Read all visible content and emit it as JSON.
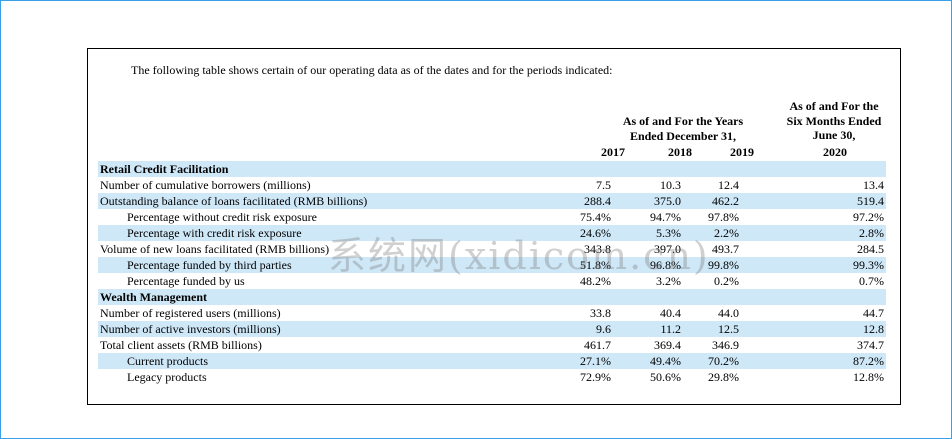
{
  "intro": "The following table shows certain of our operating data as of the dates and for the periods indicated:",
  "headers": {
    "years_line1": "As of and For the Years",
    "years_line2": "Ended December 31,",
    "six_line1": "As of and For the",
    "six_line2": "Six Months Ended",
    "six_line3": "June 30,",
    "y2017": "2017",
    "y2018": "2018",
    "y2019": "2019",
    "y2020": "2020"
  },
  "rows": [
    {
      "label": "Retail Credit Facilitation",
      "section": true,
      "v": [
        "",
        "",
        "",
        ""
      ]
    },
    {
      "label": "Number of cumulative borrowers (millions)",
      "v": [
        "7.5",
        "10.3",
        "12.4",
        "13.4"
      ]
    },
    {
      "label": "Outstanding balance of loans facilitated (RMB billions)",
      "v": [
        "288.4",
        "375.0",
        "462.2",
        "519.4"
      ]
    },
    {
      "label": "Percentage without credit risk exposure",
      "indent": true,
      "v": [
        "75.4%",
        "94.7%",
        "97.8%",
        "97.2%"
      ]
    },
    {
      "label": "Percentage with credit risk exposure",
      "indent": true,
      "v": [
        "24.6%",
        "5.3%",
        "2.2%",
        "2.8%"
      ]
    },
    {
      "label": "Volume of new loans facilitated (RMB billions)",
      "v": [
        "343.8",
        "397.0",
        "493.7",
        "284.5"
      ]
    },
    {
      "label": "Percentage funded by third parties",
      "indent": true,
      "v": [
        "51.8%",
        "96.8%",
        "99.8%",
        "99.3%"
      ]
    },
    {
      "label": "Percentage funded by us",
      "indent": true,
      "v": [
        "48.2%",
        "3.2%",
        "0.2%",
        "0.7%"
      ]
    },
    {
      "label": "Wealth Management",
      "section": true,
      "v": [
        "",
        "",
        "",
        ""
      ]
    },
    {
      "label": "Number of registered users (millions)",
      "v": [
        "33.8",
        "40.4",
        "44.0",
        "44.7"
      ]
    },
    {
      "label": "Number of active investors (millions)",
      "v": [
        "9.6",
        "11.2",
        "12.5",
        "12.8"
      ]
    },
    {
      "label": "Total client assets (RMB billions)",
      "v": [
        "461.7",
        "369.4",
        "346.9",
        "374.7"
      ]
    },
    {
      "label": "Current products",
      "indent": true,
      "v": [
        "27.1%",
        "49.4%",
        "70.2%",
        "87.2%"
      ]
    },
    {
      "label": "Legacy products",
      "indent": true,
      "v": [
        "72.9%",
        "50.6%",
        "29.8%",
        "12.8%"
      ]
    }
  ],
  "watermark": "系统网(xidicom.cn)"
}
